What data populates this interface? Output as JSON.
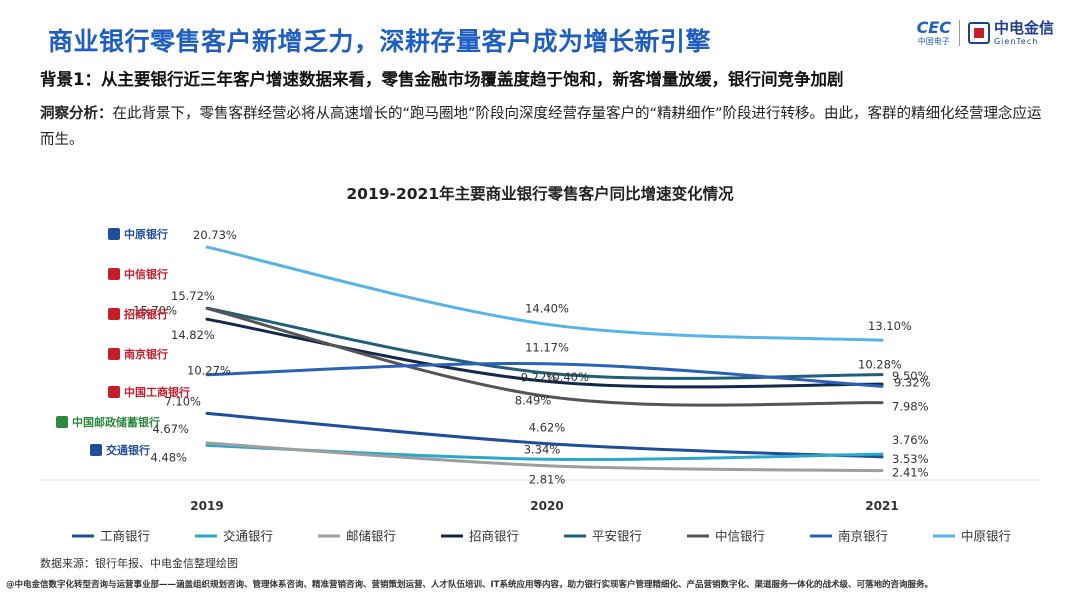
{
  "header": {
    "title": "商业银行零售客户新增乏力，深耕存量客户成为增长新引擎",
    "brand_cec": "CEC",
    "brand_cec_sub": "中国电子",
    "brand_gt": "中电金信",
    "brand_gt_sub": "GienTech"
  },
  "background_line": "背景1：从主要银行近三年客户增速数据来看，零售金融市场覆盖度趋于饱和，新客增量放缓，银行间竞争加剧",
  "insight": {
    "label": "洞察分析：",
    "text": "在此背景下，零售客群经营必将从高速增长的“跑马圈地”阶段向深度经营存量客户的“精耕细作”阶段进行转移。由此，客群的精细化经营理念应运而生。"
  },
  "bank_logos": [
    "中原银行",
    "中信银行",
    "招商银行",
    "南京银行",
    "中国工商银行",
    "中国邮政储蓄银行",
    "交通银行"
  ],
  "chart_data": {
    "type": "line",
    "title": "2019-2021年主要商业银行零售客户同比增速变化情况",
    "x": [
      "2019",
      "2020",
      "2021"
    ],
    "unit": "%",
    "series": [
      {
        "name": "工商银行",
        "color": "#1f4e9c",
        "values": [
          7.1,
          4.62,
          3.53
        ],
        "labels": [
          "7.10%",
          "4.62%",
          "3.53%"
        ]
      },
      {
        "name": "交通银行",
        "color": "#2aa7c9",
        "values": [
          4.48,
          3.34,
          3.76
        ],
        "labels": [
          "4.48%",
          "3.34%",
          "3.76%"
        ]
      },
      {
        "name": "邮储银行",
        "color": "#9e9e9e",
        "values": [
          4.67,
          2.81,
          2.41
        ],
        "labels": [
          "4.67%",
          "2.81%",
          "2.41%"
        ]
      },
      {
        "name": "招商银行",
        "color": "#13294b",
        "values": [
          14.82,
          9.72,
          9.5
        ],
        "labels": [
          "14.82%",
          "9.72%",
          "9.50%"
        ]
      },
      {
        "name": "平安银行",
        "color": "#1f5f7a",
        "values": [
          15.72,
          10.4,
          10.28
        ],
        "labels": [
          "15.72%",
          "10.40%",
          "10.28%"
        ]
      },
      {
        "name": "中信银行",
        "color": "#555555",
        "values": [
          15.7,
          8.49,
          7.98
        ],
        "labels": [
          "15.70%",
          "8.49%",
          "7.98%"
        ]
      },
      {
        "name": "南京银行",
        "color": "#2b62b8",
        "values": [
          10.27,
          11.17,
          9.32
        ],
        "labels": [
          "10.27%",
          "11.17%",
          "9.32%"
        ]
      },
      {
        "name": "中原银行",
        "color": "#56b4e9",
        "values": [
          20.73,
          14.4,
          13.1
        ],
        "labels": [
          "20.73%",
          "14.40%",
          "13.10%"
        ]
      }
    ],
    "legend_position": "bottom",
    "grid": false
  },
  "source": "数据来源：银行年报、中电金信整理绘图",
  "footer": "@中电金信数字化转型咨询与运营事业部——涵盖组织规划咨询、管理体系咨询、精准营销咨询、营销策划运营、人才队伍培训、IT系统应用等内容，助力银行实现客户管理精细化、产品营销数字化、渠道服务一体化的战术级、可落地的咨询服务。"
}
